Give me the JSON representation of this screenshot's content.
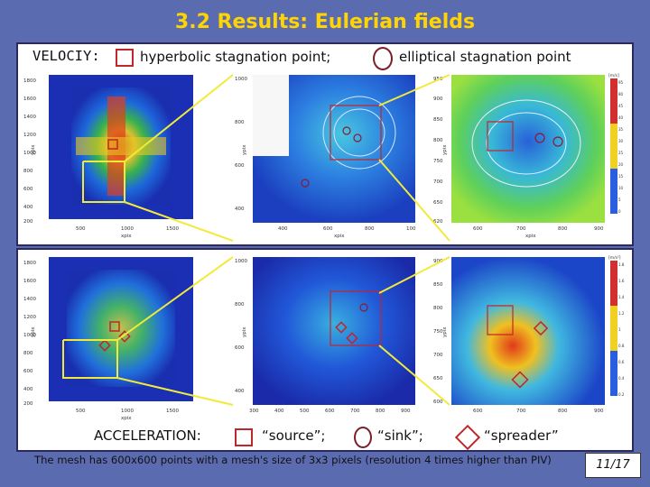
{
  "title": "3.2 Results: Eulerian fields",
  "velocity_row": {
    "label": "VELOCIY:",
    "hyperbolic_text": "hyperbolic stagnation point;",
    "elliptical_text": "elliptical stagnation point"
  },
  "acceleration_row": {
    "label": "ACCELERATION:",
    "source_text": "“source”;",
    "sink_text": "“sink”;",
    "spreader_text": "“spreader”"
  },
  "note": "The mesh has 600x600 points with a mesh's size of 3x3 pixels (resolution 4 times higher than PIV)",
  "page_number": "11/17",
  "plots": {
    "top": [
      {
        "xlabel": "xpix",
        "ylabel": "ypix",
        "yticks": [
          "1800",
          "1600",
          "1400",
          "1200",
          "1000",
          "800",
          "600",
          "400",
          "200"
        ],
        "xticks": [
          "500",
          "1000",
          "1500"
        ]
      },
      {
        "xlabel": "xpix",
        "ylabel": "ypix",
        "yticks": [
          "1000",
          "800",
          "600",
          "400"
        ],
        "xticks": [
          "400",
          "600",
          "800",
          "100"
        ]
      },
      {
        "xlabel": "xpix",
        "ylabel": "ypix",
        "yticks": [
          "950",
          "900",
          "850",
          "800",
          "750",
          "700",
          "650",
          "620"
        ],
        "xticks": [
          "600",
          "700",
          "800",
          "900"
        ],
        "colorbar_label": "[m/s]",
        "colorbar_ticks": [
          "95",
          "80",
          "45",
          "40",
          "35",
          "30",
          "25",
          "20",
          "15",
          "10",
          "5",
          "0"
        ]
      }
    ],
    "bottom": [
      {
        "xlabel": "xpix",
        "ylabel": "ypix",
        "yticks": [
          "1800",
          "1600",
          "1400",
          "1200",
          "1000",
          "800",
          "600",
          "400",
          "200"
        ],
        "xticks": [
          "500",
          "1000",
          "1500"
        ]
      },
      {
        "xlabel": "xpix",
        "ylabel": "ypix",
        "yticks": [
          "1000",
          "800",
          "600",
          "400"
        ],
        "xticks": [
          "300",
          "400",
          "500",
          "600",
          "700",
          "800",
          "900"
        ]
      },
      {
        "xlabel": "xpix",
        "ylabel": "ypix",
        "yticks": [
          "900",
          "850",
          "800",
          "750",
          "700",
          "650",
          "600"
        ],
        "xticks": [
          "600",
          "700",
          "800",
          "900"
        ],
        "colorbar_label": "[m/s²]",
        "colorbar_ticks": [
          "1.8",
          "1.6",
          "1.4",
          "1.2",
          "1",
          "0.8",
          "0.6",
          "0.4",
          "0.2"
        ]
      }
    ]
  },
  "colors": {
    "background": "#5b6bb0",
    "title": "#ffd400",
    "marker": "#c0262a",
    "zoom_line": "#f2ea3a"
  }
}
